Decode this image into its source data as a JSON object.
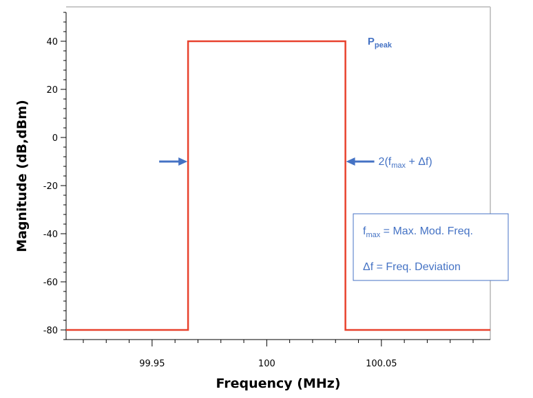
{
  "chart_data": {
    "type": "line",
    "xlabel": "Frequency (MHz)",
    "ylabel": "Magnitude (dB,dBm)",
    "xlim": [
      99.9125,
      100.0975
    ],
    "ylim": [
      -84,
      52
    ],
    "xticks": [
      {
        "value": 99.95,
        "label": "99.95"
      },
      {
        "value": 100,
        "label": "100"
      },
      {
        "value": 100.05,
        "label": "100.05"
      }
    ],
    "yticks": [
      {
        "value": 40,
        "label": "40"
      },
      {
        "value": 20,
        "label": "20"
      },
      {
        "value": 0,
        "label": "0"
      },
      {
        "value": -20,
        "label": "-20"
      },
      {
        "value": -40,
        "label": "-40"
      },
      {
        "value": -60,
        "label": "-60"
      },
      {
        "value": -80,
        "label": "-80"
      }
    ],
    "series": [
      {
        "color": "#e8412c",
        "x": [
          99.9125,
          99.9657,
          99.9657,
          100.0343,
          100.0343,
          100.0975
        ],
        "y": [
          -80,
          -80,
          40,
          40,
          -80,
          -80
        ]
      }
    ],
    "annotations": {
      "peak": {
        "main": "P",
        "sub": "peak",
        "x": 100.044,
        "y": 40
      },
      "bandwidth": {
        "prefix": "2(f",
        "sub": "max",
        "suffix": " + Δf)",
        "y": -10,
        "left_edge": 99.9657,
        "right_edge": 100.0343
      },
      "legend_box": {
        "line1_main": "f",
        "line1_sub": "max",
        "line1_rest": " = Max. Mod. Freq.",
        "line2": "Δf = Freq. Deviation"
      }
    },
    "colors": {
      "line": "#e8412c",
      "annotation": "#4472c4",
      "frame": "#c8c8c8"
    },
    "grid": false
  }
}
